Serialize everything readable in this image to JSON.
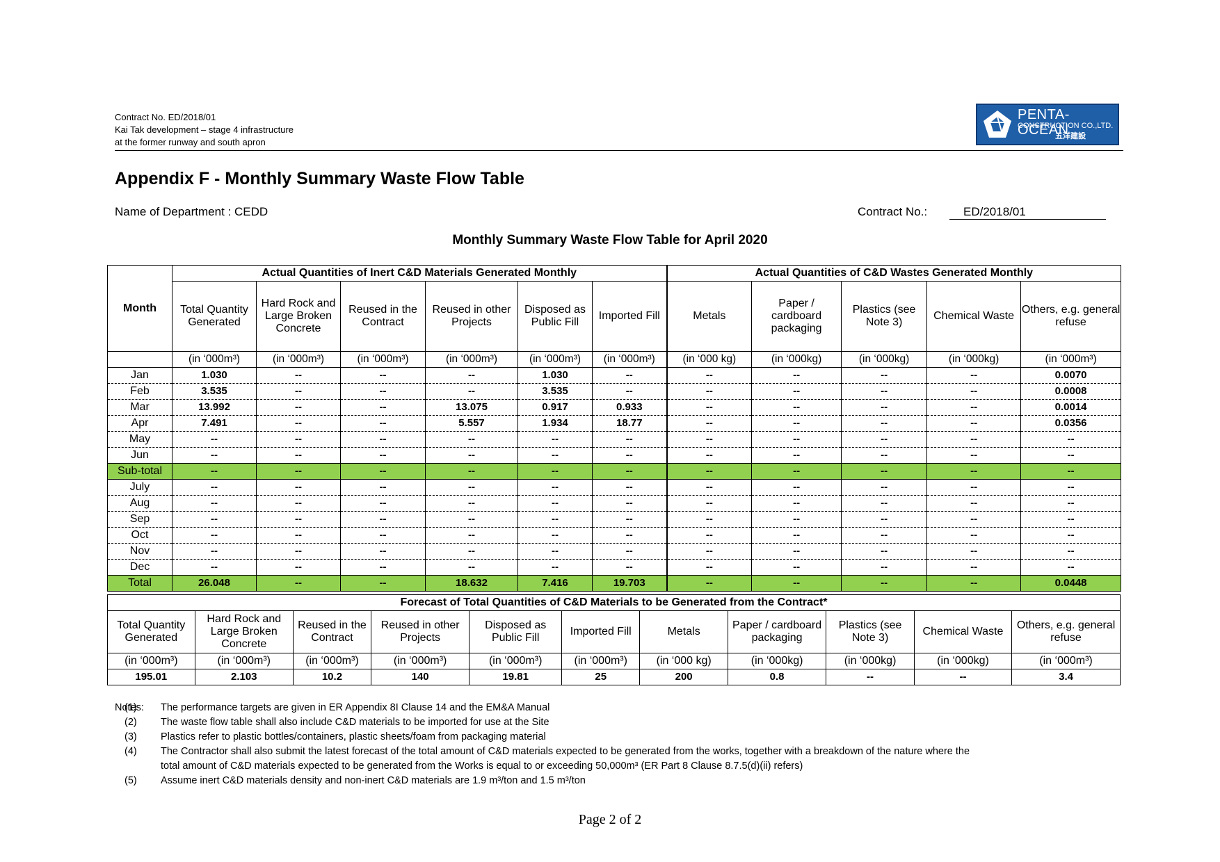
{
  "header": {
    "lines": [
      "Contract No. ED/2018/01",
      "Kai Tak development – stage 4 infrastructure",
      "at the former runway and south apron"
    ],
    "logo": {
      "name": "PENTA-OCEAN",
      "sub": "CONSTRUCTION CO.,LTD.",
      "cn": "五洋建設",
      "color": "#1f5fa8"
    }
  },
  "title": "Appendix F - Monthly Summary Waste Flow Table",
  "department": "Name of Department : CEDD",
  "contract_label": "Contract No.:",
  "contract_value": "ED/2018/01",
  "table_title": "Monthly Summary Waste Flow Table for April 2020",
  "main": {
    "group_inert": "Actual Quantities of Inert C&D Materials Generated Monthly",
    "group_waste": "Actual Quantities of C&D Wastes Generated Monthly",
    "month_header": "Month",
    "columns": [
      {
        "label": "Total Quantity Generated",
        "unit": "(in ‘000m³)"
      },
      {
        "label": "Hard Rock and Large Broken Concrete",
        "unit": "(in ‘000m³)"
      },
      {
        "label": "Reused in the Contract",
        "unit": "(in ‘000m³)"
      },
      {
        "label": "Reused in other Projects",
        "unit": "(in ‘000m³)"
      },
      {
        "label": "Disposed as Public Fill",
        "unit": "(in ‘000m³)"
      },
      {
        "label": "Imported Fill",
        "unit": "(in ‘000m³)"
      },
      {
        "label": "Metals",
        "unit": "(in ‘000 kg)"
      },
      {
        "label": "Paper / cardboard packaging",
        "unit": "(in ‘000kg)"
      },
      {
        "label": "Plastics (see Note 3)",
        "unit": "(in ‘000kg)"
      },
      {
        "label": "Chemical Waste",
        "unit": "(in ‘000kg)"
      },
      {
        "label": "Others, e.g. general refuse",
        "unit": "(in ‘000m³)"
      }
    ],
    "rows": [
      {
        "month": "Jan",
        "values": [
          "1.030",
          "--",
          "--",
          "--",
          "1.030",
          "--",
          "--",
          "--",
          "--",
          "--",
          "0.0070"
        ]
      },
      {
        "month": "Feb",
        "values": [
          "3.535",
          "--",
          "--",
          "--",
          "3.535",
          "--",
          "--",
          "--",
          "--",
          "--",
          "0.0008"
        ]
      },
      {
        "month": "Mar",
        "values": [
          "13.992",
          "--",
          "--",
          "13.075",
          "0.917",
          "0.933",
          "--",
          "--",
          "--",
          "--",
          "0.0014"
        ]
      },
      {
        "month": "Apr",
        "values": [
          "7.491",
          "--",
          "--",
          "5.557",
          "1.934",
          "18.77",
          "--",
          "--",
          "--",
          "--",
          "0.0356"
        ]
      },
      {
        "month": "May",
        "values": [
          "--",
          "--",
          "--",
          "--",
          "--",
          "--",
          "--",
          "--",
          "--",
          "--",
          "--"
        ]
      },
      {
        "month": "Jun",
        "values": [
          "--",
          "--",
          "--",
          "--",
          "--",
          "--",
          "--",
          "--",
          "--",
          "--",
          "--"
        ]
      },
      {
        "month": "Sub-total",
        "highlight": true,
        "values": [
          "--",
          "--",
          "--",
          "--",
          "--",
          "--",
          "--",
          "--",
          "--",
          "--",
          "--"
        ]
      },
      {
        "month": "July",
        "values": [
          "--",
          "--",
          "--",
          "--",
          "--",
          "--",
          "--",
          "--",
          "--",
          "--",
          "--"
        ]
      },
      {
        "month": "Aug",
        "values": [
          "--",
          "--",
          "--",
          "--",
          "--",
          "--",
          "--",
          "--",
          "--",
          "--",
          "--"
        ]
      },
      {
        "month": "Sep",
        "values": [
          "--",
          "--",
          "--",
          "--",
          "--",
          "--",
          "--",
          "--",
          "--",
          "--",
          "--"
        ]
      },
      {
        "month": "Oct",
        "values": [
          "--",
          "--",
          "--",
          "--",
          "--",
          "--",
          "--",
          "--",
          "--",
          "--",
          "--"
        ]
      },
      {
        "month": "Nov",
        "values": [
          "--",
          "--",
          "--",
          "--",
          "--",
          "--",
          "--",
          "--",
          "--",
          "--",
          "--"
        ]
      },
      {
        "month": "Dec",
        "values": [
          "--",
          "--",
          "--",
          "--",
          "--",
          "--",
          "--",
          "--",
          "--",
          "--",
          "--"
        ]
      },
      {
        "month": "Total",
        "highlight": true,
        "values": [
          "26.048",
          "--",
          "--",
          "18.632",
          "7.416",
          "19.703",
          "--",
          "--",
          "--",
          "--",
          "0.0448"
        ]
      }
    ],
    "highlight_color": "#92d050"
  },
  "forecast": {
    "title": "Forecast of Total Quantities of C&D Materials to be Generated from the Contract*",
    "columns": [
      {
        "label": "Total Quantity Generated",
        "unit": "(in ‘000m³)",
        "value": "195.01"
      },
      {
        "label": "Hard Rock and Large Broken Concrete",
        "unit": "(in ‘000m³)",
        "value": "2.103"
      },
      {
        "label": "Reused in the Contract",
        "unit": "(in ‘000m³)",
        "value": "10.2"
      },
      {
        "label": "Reused in other Projects",
        "unit": "(in ‘000m³)",
        "value": "140"
      },
      {
        "label": "Disposed as Public Fill",
        "unit": "(in ‘000m³)",
        "value": "19.81"
      },
      {
        "label": "Imported Fill",
        "unit": "(in ‘000m³)",
        "value": "25"
      },
      {
        "label": "Metals",
        "unit": "(in ‘000 kg)",
        "value": "200"
      },
      {
        "label": "Paper / cardboard packaging",
        "unit": "(in ‘000kg)",
        "value": "0.8"
      },
      {
        "label": "Plastics (see Note 3)",
        "unit": "(in ‘000kg)",
        "value": "--"
      },
      {
        "label": "Chemical Waste",
        "unit": "(in ‘000kg)",
        "value": "--"
      },
      {
        "label": "Others, e.g. general refuse",
        "unit": "(in ‘000m³)",
        "value": "3.4"
      }
    ]
  },
  "notes": {
    "label": "Notes:",
    "items": [
      {
        "num": "(1)",
        "text": "The performance targets are given in ER Appendix 8I Clause 14 and the EM&A Manual"
      },
      {
        "num": "(2)",
        "text": "The waste flow table shall also include C&D materials to be imported for use at the Site"
      },
      {
        "num": "(3)",
        "text": "Plastics refer to plastic bottles/containers, plastic sheets/foam from packaging material"
      },
      {
        "num": "(4)",
        "text": "The Contractor shall also submit the latest forecast of the total amount of C&D materials expected to be generated from the works, together with a breakdown of the nature where the"
      },
      {
        "num": "",
        "text": "total amount of C&D materials expected to be generated from the Works is equal to or exceeding 50,000m³ (ER Part 8 Clause 8.7.5(d)(ii) refers)"
      },
      {
        "num": "(5)",
        "text": "Assume inert C&D materials density and non-inert C&D materials are 1.9 m³/ton and 1.5 m³/ton"
      }
    ]
  },
  "page": "Page  2  of  2"
}
